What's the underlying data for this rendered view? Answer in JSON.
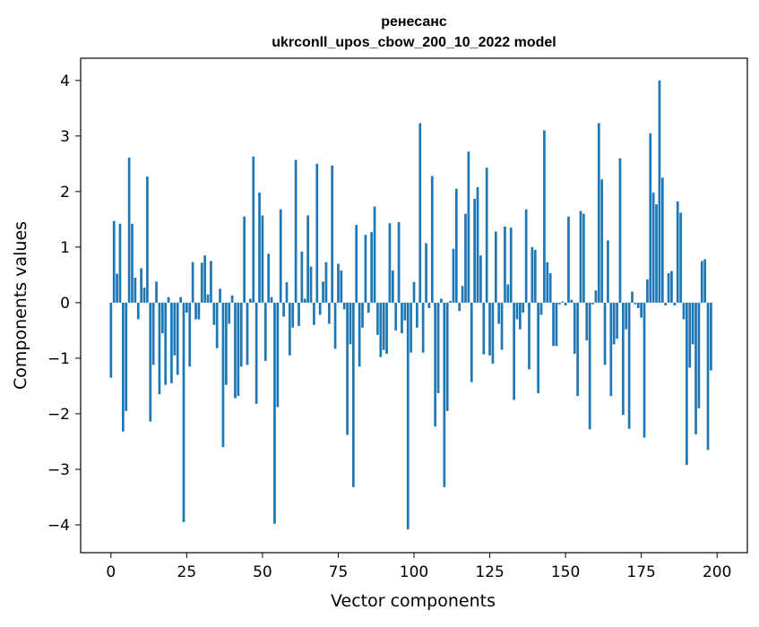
{
  "chart_data": {
    "type": "bar",
    "title_line1": "ренесанс",
    "title_line2": "ukrconll_upos_cbow_200_10_2022 model",
    "xlabel": "Vector components",
    "ylabel": "Components values",
    "xlim": [
      -10,
      210
    ],
    "ylim": [
      -4.5,
      4.4
    ],
    "xticks": [
      0,
      25,
      50,
      75,
      100,
      125,
      150,
      175,
      200
    ],
    "xtick_labels": [
      "0",
      "25",
      "50",
      "75",
      "100",
      "125",
      "150",
      "175",
      "200"
    ],
    "yticks": [
      4,
      3,
      2,
      1,
      0,
      -1,
      -2,
      -3,
      -4
    ],
    "ytick_labels": [
      "4",
      "3",
      "2",
      "1",
      "0",
      "−1",
      "−2",
      "−3",
      "−4"
    ],
    "grid": false,
    "bar_color": "#1f77b4",
    "values": [
      -1.35,
      1.47,
      0.52,
      1.42,
      -2.32,
      -1.95,
      2.61,
      1.42,
      0.45,
      -0.3,
      0.62,
      0.27,
      2.27,
      -2.14,
      -1.12,
      0.38,
      -1.65,
      -0.55,
      -1.48,
      0.1,
      -1.45,
      -0.95,
      -1.3,
      0.1,
      -3.95,
      -0.18,
      -1.15,
      0.73,
      -0.3,
      -0.3,
      0.72,
      0.85,
      0.15,
      0.75,
      -0.4,
      -0.82,
      0.25,
      -2.6,
      -1.48,
      -0.38,
      0.13,
      -1.72,
      -1.68,
      -1.15,
      1.55,
      -1.12,
      0.07,
      2.63,
      -1.82,
      1.98,
      1.57,
      -1.05,
      0.88,
      0.1,
      -3.98,
      -1.88,
      1.68,
      -0.25,
      0.37,
      -0.95,
      -0.45,
      2.57,
      -0.42,
      0.92,
      0.07,
      1.57,
      0.65,
      -0.4,
      2.5,
      -0.22,
      0.38,
      0.73,
      -0.38,
      2.47,
      -0.83,
      0.7,
      0.58,
      -0.12,
      -2.38,
      -0.75,
      -3.32,
      1.4,
      -1.15,
      -0.45,
      1.22,
      -0.18,
      1.27,
      1.73,
      -0.58,
      -0.98,
      -0.85,
      -0.92,
      1.43,
      0.58,
      -0.5,
      1.45,
      -0.55,
      -0.32,
      -4.08,
      -0.9,
      0.37,
      -0.45,
      3.23,
      -0.9,
      1.07,
      -0.1,
      2.28,
      -2.23,
      -1.63,
      0.07,
      -3.32,
      -1.95,
      0.03,
      0.97,
      2.05,
      -0.15,
      0.3,
      1.6,
      2.72,
      -1.43,
      1.87,
      2.08,
      0.85,
      -0.93,
      2.43,
      -0.95,
      -1.1,
      1.28,
      -0.38,
      -0.85,
      1.37,
      0.33,
      1.35,
      -1.75,
      -0.3,
      -0.48,
      -0.18,
      1.68,
      -1.2,
      1.0,
      0.95,
      -1.63,
      -0.22,
      3.1,
      0.73,
      0.53,
      -0.78,
      -0.78,
      -0.03,
      0.02,
      -0.05,
      1.55,
      0.05,
      -0.92,
      -1.68,
      1.65,
      1.6,
      -0.68,
      -2.28,
      -0.03,
      0.22,
      3.23,
      2.22,
      -1.12,
      1.12,
      -1.68,
      -0.75,
      -0.65,
      2.6,
      -2.02,
      -0.48,
      -2.27,
      0.2,
      -0.03,
      -0.1,
      -0.27,
      -2.43,
      0.42,
      3.05,
      1.98,
      1.77,
      4.0,
      2.25,
      -0.05,
      0.53,
      0.57,
      -0.05,
      1.82,
      1.62,
      -0.3,
      -2.92,
      -1.17,
      -0.75,
      -2.37,
      -1.9,
      0.75,
      0.78,
      -2.65,
      -1.22,
      0.0
    ]
  }
}
